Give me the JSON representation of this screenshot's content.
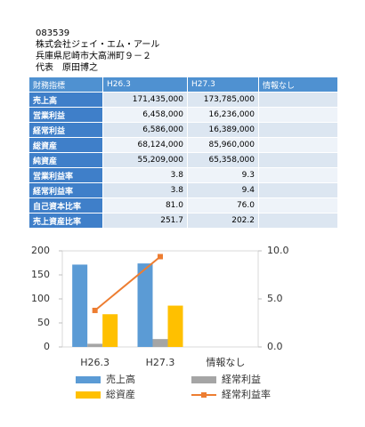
{
  "header": {
    "lines": [
      "083539",
      "株式会社ジェイ・エム・アール",
      "兵庫県尼崎市大高洲町９－２",
      "代表　原田博之"
    ]
  },
  "table": {
    "header": [
      "財務指標",
      "H26.3",
      "H27.3",
      "情報なし"
    ],
    "rows": [
      [
        "売上高",
        "171,435,000",
        "173,785,000"
      ],
      [
        "営業利益",
        "6,458,000",
        "16,236,000"
      ],
      [
        "経常利益",
        "6,586,000",
        "16,389,000"
      ],
      [
        "総資産",
        "68,124,000",
        "85,960,000"
      ],
      [
        "純資産",
        "55,209,000",
        "65,358,000"
      ],
      [
        "営業利益率",
        "3.8",
        "9.3"
      ],
      [
        "経常利益率",
        "3.8",
        "9.4"
      ],
      [
        "自己資本比率",
        "81.0",
        "76.0"
      ],
      [
        "売上資産比率",
        "251.7",
        "202.2"
      ]
    ]
  },
  "chart_data": {
    "type": "bar",
    "categories": [
      "H26.3",
      "H27.3",
      "情報なし"
    ],
    "ylim": [
      0,
      200
    ],
    "yticks": [
      0,
      50,
      100,
      150,
      200
    ],
    "y2lim": [
      0,
      10
    ],
    "y2ticks": [
      {
        "value": 0,
        "label": "0.0"
      },
      {
        "value": 5,
        "label": "5.0"
      },
      {
        "value": 10,
        "label": "10.0"
      }
    ],
    "grid": false,
    "series": [
      {
        "name": "売上高",
        "color": "#5b9bd5",
        "values": [
          171.4,
          173.8,
          null
        ]
      },
      {
        "name": "経常利益",
        "color": "#a5a5a5",
        "values": [
          6.6,
          16.4,
          null
        ]
      },
      {
        "name": "総資産",
        "color": "#ffc000",
        "values": [
          68.1,
          86.0,
          null
        ]
      },
      {
        "name": "経常利益率",
        "color": "#ed7d31",
        "type": "line",
        "axis": "y2",
        "values": [
          3.8,
          9.4,
          null
        ]
      }
    ]
  }
}
